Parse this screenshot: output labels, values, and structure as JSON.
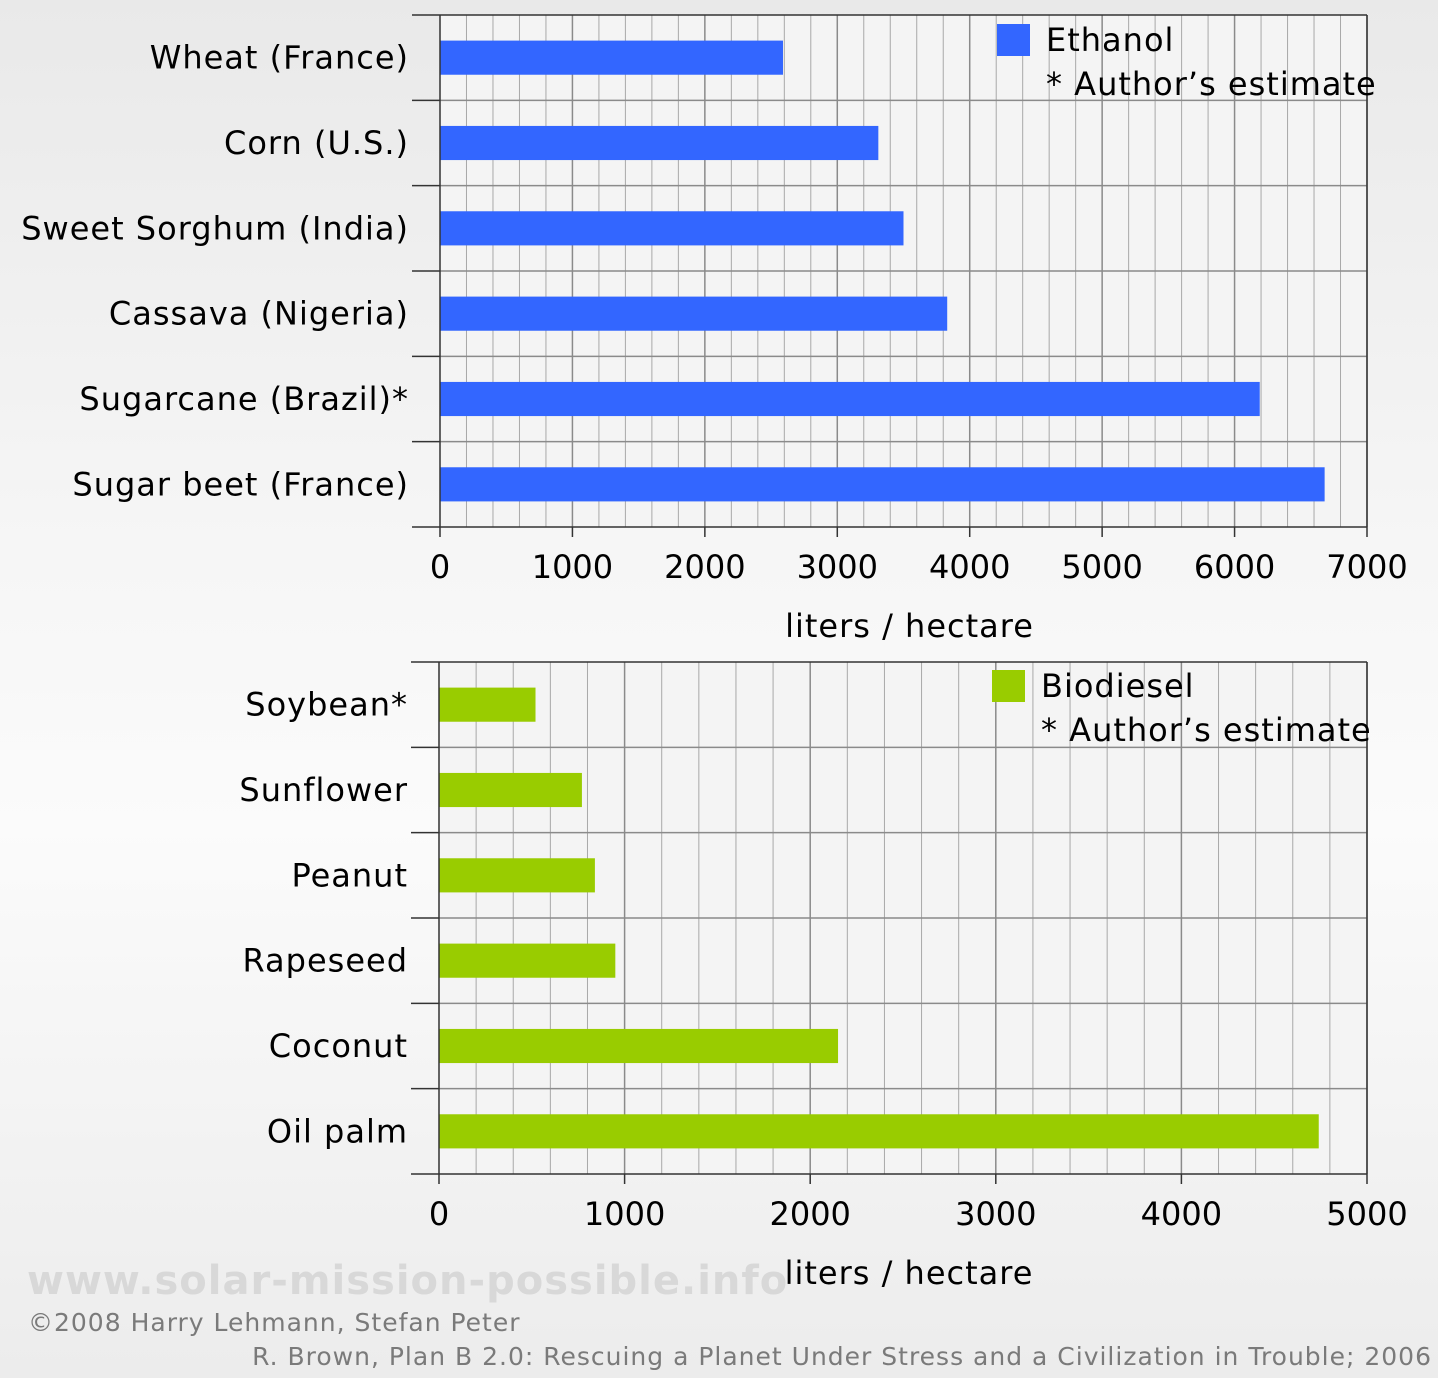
{
  "chart_data": [
    {
      "type": "bar",
      "orientation": "horizontal",
      "categories": [
        "Wheat (France)",
        "Corn (U.S.)",
        "Sweet Sorghum (India)",
        "Cassava (Nigeria)",
        "Sugarcane (Brazil)*",
        "Sugar beet (France)"
      ],
      "series": [
        {
          "name": "Ethanol",
          "values": [
            2590,
            3310,
            3500,
            3830,
            6190,
            6680
          ],
          "color": "#3366ff"
        }
      ],
      "legend_note": "* Author’s estimate",
      "legend_position": "top-right",
      "xlabel": "liters / hectare",
      "xlim": [
        0,
        7000
      ],
      "xticks": [
        0,
        1000,
        2000,
        3000,
        4000,
        5000,
        6000,
        7000
      ],
      "grid": true
    },
    {
      "type": "bar",
      "orientation": "horizontal",
      "categories": [
        "Soybean*",
        "Sunflower",
        "Peanut",
        "Rapeseed",
        "Coconut",
        "Oil palm"
      ],
      "series": [
        {
          "name": "Biodiesel",
          "values": [
            520,
            770,
            840,
            950,
            2150,
            4740
          ],
          "color": "#99cc00"
        }
      ],
      "legend_note": "* Author’s estimate",
      "legend_position": "top-right",
      "xlabel": "liters / hectare",
      "xlim": [
        0,
        5000
      ],
      "xticks": [
        0,
        1000,
        2000,
        3000,
        4000,
        5000
      ],
      "grid": true
    }
  ],
  "footer": {
    "watermark": "www.solar-mission-possible.info",
    "copyright": "©2008 Harry Lehmann, Stefan Peter",
    "source": "R. Brown, Plan B 2.0: Rescuing a Planet Under Stress and a Civilization in Trouble; 2006"
  }
}
